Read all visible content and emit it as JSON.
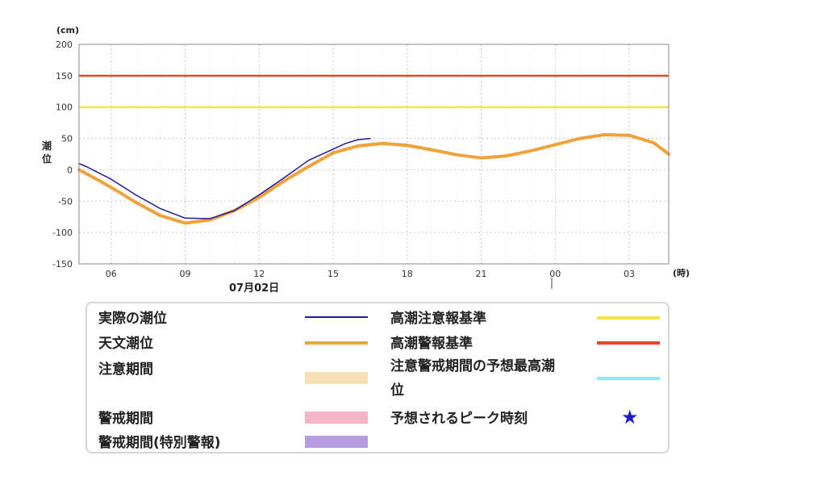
{
  "chart_data": {
    "type": "line",
    "y_unit": "(cm)",
    "x_unit": "(時)",
    "ylabel": "潮位",
    "date_label": "07月02日",
    "ylim": [
      -150,
      200
    ],
    "y_ticks": [
      200,
      150,
      100,
      50,
      0,
      -50,
      -100,
      -150
    ],
    "x_range_hours": [
      4.7,
      28.6
    ],
    "x_ticks": [
      {
        "hour": 6,
        "label": "06"
      },
      {
        "hour": 9,
        "label": "09"
      },
      {
        "hour": 12,
        "label": "12"
      },
      {
        "hour": 15,
        "label": "15"
      },
      {
        "hour": 18,
        "label": "18"
      },
      {
        "hour": 21,
        "label": "21"
      },
      {
        "hour": 24,
        "label": "00"
      },
      {
        "hour": 27,
        "label": "03"
      }
    ],
    "grid": true,
    "thresholds": [
      {
        "name": "高潮警報基準",
        "value": 150,
        "color": "#e4472a"
      },
      {
        "name": "高潮注意報基準",
        "value": 100,
        "color": "#f2e54a"
      }
    ],
    "series": [
      {
        "name": "天文潮位",
        "color": "#f0a23a",
        "x": [
          4.7,
          5.5,
          6,
          7,
          8,
          9,
          10,
          11,
          12,
          13,
          14,
          15,
          16,
          17,
          18,
          19,
          20,
          21,
          22,
          23,
          24,
          25,
          26,
          27,
          28,
          28.6
        ],
        "y": [
          0,
          -17,
          -28,
          -52,
          -73,
          -85,
          -80,
          -65,
          -44,
          -18,
          5,
          27,
          38,
          42,
          39,
          32,
          24,
          19,
          22,
          30,
          40,
          50,
          56,
          55,
          43,
          25
        ]
      },
      {
        "name": "実際の潮位",
        "color": "#1f1a9e",
        "x": [
          4.7,
          5,
          5.5,
          6,
          7,
          8,
          9,
          10,
          11,
          12,
          13,
          14,
          15,
          15.5,
          16,
          16.5
        ],
        "y": [
          10,
          5,
          -5,
          -15,
          -40,
          -62,
          -77,
          -78,
          -65,
          -40,
          -13,
          15,
          33,
          42,
          48,
          50
        ]
      }
    ]
  },
  "legend": {
    "items": [
      {
        "label": "実際の潮位",
        "kind": "line",
        "color": "#1f1a9e"
      },
      {
        "label": "天文潮位",
        "kind": "line",
        "color": "#f0a23a"
      },
      {
        "label": "注意期間",
        "kind": "band",
        "color": "#f7dfb6"
      },
      {
        "label": "警戒期間",
        "kind": "band",
        "color": "#f4b6c7"
      },
      {
        "label": "警戒期間(特別警報)",
        "kind": "band",
        "color": "#b59ce0"
      },
      {
        "label": "高潮注意報基準",
        "kind": "line",
        "color": "#f2e54a"
      },
      {
        "label": "高潮警報基準",
        "kind": "line",
        "color": "#e4472a"
      },
      {
        "label": "注意警戒期間の予想最高潮位",
        "kind": "line",
        "color": "#7ff0f7"
      },
      {
        "label": "予想されるピーク時刻",
        "kind": "star",
        "color": "#1b1bd6"
      }
    ]
  }
}
